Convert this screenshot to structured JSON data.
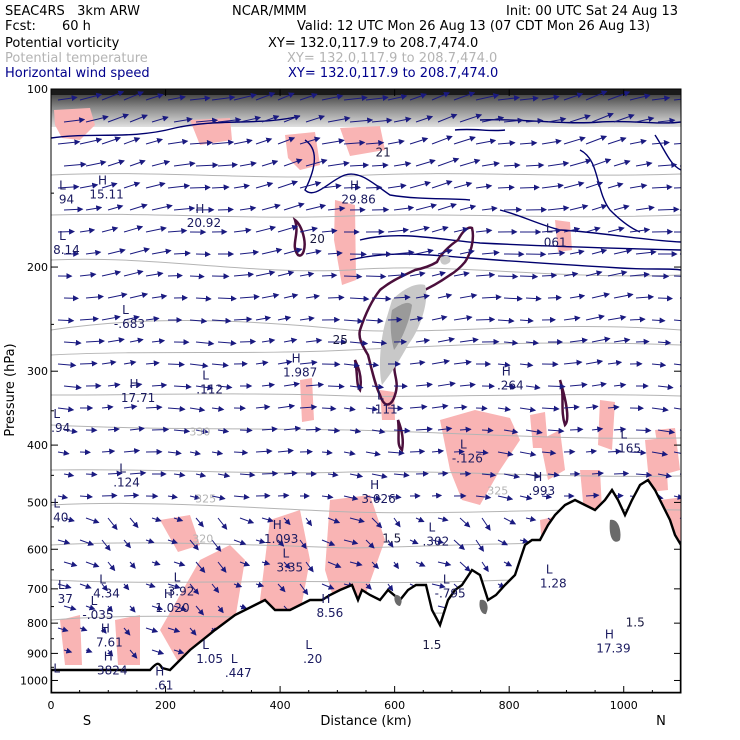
{
  "header": {
    "model": "SEAC4RS   3km ARW",
    "org": "NCAR/MMM",
    "init": "Init: 00 UTC Sat 24 Aug 13",
    "fcst_label": "Fcst:",
    "fcst_value": "60 h",
    "valid": "Valid: 12 UTC Mon 26 Aug 13 (07 CDT Mon 26 Aug 13)",
    "fields": [
      {
        "name": "Potential vorticity",
        "xy": "XY= 132.0,117.9 to 208.7,474.0",
        "color": "#000000"
      },
      {
        "name": "Potential temperature",
        "xy": "XY= 132.0,117.9 to 208.7,474.0",
        "color": "#b4b4b4"
      },
      {
        "name": "Horizontal wind speed",
        "xy": "XY= 132.0,117.9 to 208.7,474.0",
        "color": "#00008c"
      }
    ]
  },
  "chart_data": {
    "type": "cross-section",
    "title": "",
    "xlabel": "Distance (km)",
    "ylabel": "Pressure (hPa)",
    "xlim": [
      0,
      1100
    ],
    "ylim": [
      1050,
      100
    ],
    "y_scale": "log",
    "x_ticks": [
      0,
      200,
      400,
      600,
      800,
      1000
    ],
    "y_ticks": [
      100,
      200,
      300,
      400,
      500,
      600,
      700,
      800,
      900,
      1000
    ],
    "x_end_labels": {
      "left": "S",
      "right": "N"
    },
    "colors": {
      "wind_vectors": "#1a1a80",
      "wind_contours": "#00006e",
      "theta_contours": "#b4b4b4",
      "pv_contour": "#4b0f3c",
      "cloud_shading": "#f9b4b4",
      "terrain": "#000000"
    },
    "theta_labels": [
      {
        "x": 260,
        "p": 385,
        "text": "330"
      },
      {
        "x": 270,
        "p": 500,
        "text": "325"
      },
      {
        "x": 265,
        "p": 585,
        "text": "320"
      },
      {
        "x": 780,
        "p": 485,
        "text": "325"
      }
    ],
    "pv_labels": [
      {
        "x": 595,
        "p": 585,
        "text": "1.5"
      },
      {
        "x": 665,
        "p": 885,
        "text": "1.5"
      },
      {
        "x": 1020,
        "p": 810,
        "text": "1.5"
      },
      {
        "x": 465,
        "p": 182,
        "text": "20"
      },
      {
        "x": 505,
        "p": 270,
        "text": "25"
      },
      {
        "x": 580,
        "p": 130,
        "text": "21"
      }
    ],
    "extrema": [
      {
        "type": "L",
        "x": 20,
        "p": 148,
        "value": "94",
        "value_x": 10,
        "value_p": 148
      },
      {
        "type": "H",
        "x": 90,
        "p": 145,
        "value": "15.11",
        "value_x": 100,
        "value_p": 160
      },
      {
        "type": "L",
        "x": 20,
        "p": 180,
        "value": "8.14"
      },
      {
        "type": "L",
        "x": 130,
        "p": 240,
        "value": "-.683"
      },
      {
        "type": "H",
        "x": 145,
        "p": 320,
        "value": "17.71"
      },
      {
        "type": "L",
        "x": 10,
        "p": 360,
        "value": ".94"
      },
      {
        "type": "L",
        "x": 125,
        "p": 445,
        "value": ".124"
      },
      {
        "type": "L",
        "x": 10,
        "p": 510,
        "value": "40"
      },
      {
        "type": "H",
        "x": 260,
        "p": 162,
        "value": "20.92"
      },
      {
        "type": "L",
        "x": 270,
        "p": 310,
        "value": ".112"
      },
      {
        "type": "H",
        "x": 428,
        "p": 290,
        "value": "1.987"
      },
      {
        "type": "L",
        "x": 575,
        "p": 335,
        "value": ".111"
      },
      {
        "type": "H",
        "x": 530,
        "p": 148,
        "value": "29.86"
      },
      {
        "type": "L",
        "x": 870,
        "p": 175,
        "value": ".061"
      },
      {
        "type": "H",
        "x": 795,
        "p": 305,
        "value": ".264"
      },
      {
        "type": "L",
        "x": 720,
        "p": 405,
        "value": "-.126"
      },
      {
        "type": "H",
        "x": 850,
        "p": 460,
        "value": ".993"
      },
      {
        "type": "L",
        "x": 1000,
        "p": 390,
        "value": ".165"
      },
      {
        "type": "H",
        "x": 565,
        "p": 475,
        "value": "3.026"
      },
      {
        "type": "L",
        "x": 665,
        "p": 560,
        "value": ".302"
      },
      {
        "type": "H",
        "x": 395,
        "p": 555,
        "value": "1.093"
      },
      {
        "type": "L",
        "x": 410,
        "p": 620,
        "value": "3.35"
      },
      {
        "type": "L",
        "x": 690,
        "p": 685,
        "value": "-.795"
      },
      {
        "type": "L",
        "x": 870,
        "p": 660,
        "value": "1.28"
      },
      {
        "type": "L",
        "x": 90,
        "p": 685,
        "value": "4.34"
      },
      {
        "type": "L",
        "x": 18,
        "p": 700,
        "value": "37"
      },
      {
        "type": "L",
        "x": 75,
        "p": 745,
        "value": "-.035"
      },
      {
        "type": "L",
        "x": 220,
        "p": 680,
        "value": "3.92"
      },
      {
        "type": "H",
        "x": 205,
        "p": 725,
        "value": "1.020"
      },
      {
        "type": "H",
        "x": 480,
        "p": 740,
        "value": "8.56"
      },
      {
        "type": "H",
        "x": 95,
        "p": 830,
        "value": "7.61"
      },
      {
        "type": "H",
        "x": 975,
        "p": 850,
        "value": "17.39"
      },
      {
        "type": "L",
        "x": 270,
        "p": 885,
        "value": "1.05"
      },
      {
        "type": "L",
        "x": 450,
        "p": 885,
        "value": ".20"
      },
      {
        "type": "L",
        "x": 320,
        "p": 935,
        "value": ".447"
      },
      {
        "type": "H",
        "x": 100,
        "p": 925,
        "value": "3824"
      },
      {
        "type": "H",
        "x": 190,
        "p": 980,
        "value": ".61"
      },
      {
        "type": "L",
        "x": 10,
        "p": 970,
        "value": ""
      }
    ]
  }
}
